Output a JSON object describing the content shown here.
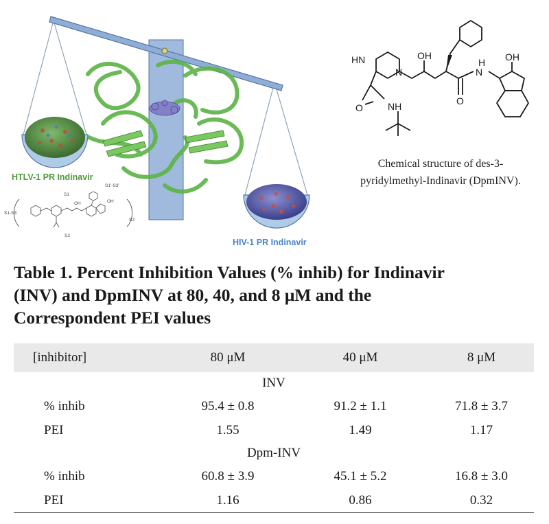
{
  "figure": {
    "htlv_label": "HTLV-1 PR Indinavir",
    "hiv_label": "HIV-1 PR Indinavir",
    "caption_line1": "Chemical structure of des-3-",
    "caption_line2": "pyridylmethyl-Indinavir (DpmINV).",
    "mini_structure": {
      "s1_s3": "S1-S3",
      "s1": "S1",
      "s1p_s3p": "S1'-S3'",
      "s2": "S2",
      "s2p": "S2'",
      "oh1": "OH",
      "oh2": "OH"
    },
    "structure": {
      "hn": "HN",
      "n": "N",
      "oh1": "OH",
      "h": "H",
      "n2": "N",
      "oh2": "OH",
      "o1": "O",
      "nh": "NH",
      "o2": "O"
    }
  },
  "title": {
    "line1": "Table 1. Percent Inhibition Values (% inhib) for Indinavir",
    "line2": "(INV) and DpmINV at 80, 40, and 8 μM and the",
    "line3": "Correspondent PEI values"
  },
  "table": {
    "header": [
      "[inhibitor]",
      "80 μM",
      "40 μM",
      "8 μM"
    ],
    "groups": [
      {
        "name": "INV",
        "rows": [
          [
            "% inhib",
            "95.4 ± 0.8",
            "91.2 ± 1.1",
            "71.8 ± 3.7"
          ],
          [
            "PEI",
            "1.55",
            "1.49",
            "1.17"
          ]
        ]
      },
      {
        "name": "Dpm-INV",
        "rows": [
          [
            "% inhib",
            "60.8 ± 3.9",
            "45.1 ± 5.2",
            "16.8 ± 3.0"
          ],
          [
            "PEI",
            "1.16",
            "0.86",
            "0.32"
          ]
        ]
      }
    ]
  },
  "colors": {
    "beam": "#8eaed6",
    "beam_stroke": "#5574a6",
    "htlv_green": "#4e9a3a",
    "hiv_blue": "#4a82c8",
    "protein_green": "#5eb548",
    "header_bg": "#e9e9e9"
  }
}
